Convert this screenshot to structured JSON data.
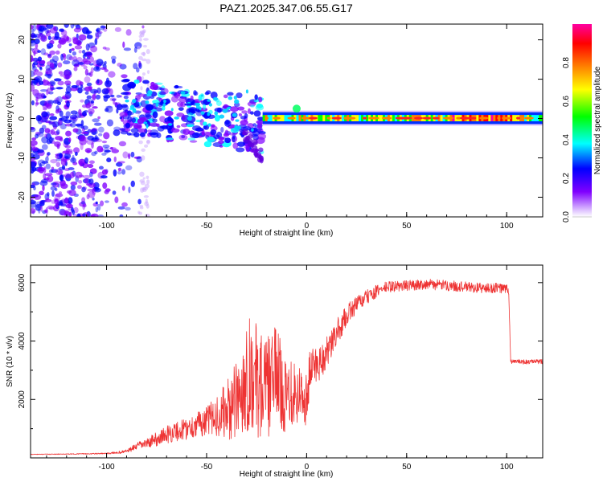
{
  "chart_data": [
    {
      "type": "heatmap",
      "title": "PAZ1.2025.347.06.55.G17",
      "xlabel": "Height of straight line (km)",
      "ylabel": "Frequency (Hz)",
      "xlim": [
        -138,
        118
      ],
      "ylim": [
        -25,
        24
      ],
      "xticks": [
        -100,
        -50,
        0,
        50,
        100
      ],
      "yticks": [
        -20,
        -10,
        0,
        10,
        20
      ],
      "xtick_labels": [
        "-100",
        "-50",
        "0",
        "50",
        "100"
      ],
      "ytick_labels": [
        "-20",
        "-10",
        "0",
        "10",
        "20"
      ],
      "colorbar": {
        "label": "Normalized spectral amplitude",
        "range": [
          0,
          1
        ],
        "ticks": [
          0,
          0.2,
          0.4,
          0.6,
          0.8
        ],
        "tick_labels": [
          "0.0",
          "0.2",
          "0.4",
          "0.6",
          "0.8"
        ],
        "colors": [
          "#ffffff",
          "#8000ff",
          "#0000ff",
          "#00ffff",
          "#00ff00",
          "#ffff00",
          "#ff8000",
          "#ff0000",
          "#ff00a0"
        ]
      }
    },
    {
      "type": "line",
      "xlabel": "Height of straight line (km)",
      "ylabel": "SNR (10 * v/v)",
      "xlim": [
        -138,
        118
      ],
      "ylim": [
        0,
        6600
      ],
      "xticks": [
        -100,
        -50,
        0,
        50,
        100
      ],
      "yticks": [
        2000,
        4000,
        6000
      ],
      "xtick_labels": [
        "-100",
        "-50",
        "0",
        "50",
        "100"
      ],
      "ytick_labels": [
        "2000",
        "4000",
        "6000"
      ],
      "series": [
        {
          "name": "SNR",
          "color": "#ee3333",
          "x": [
            -138,
            -120,
            -100,
            -92,
            -88,
            -85,
            -80,
            -75,
            -70,
            -65,
            -60,
            -55,
            -50,
            -45,
            -40,
            -35,
            -32,
            -30,
            -28,
            -25,
            -22,
            -20,
            -18,
            -15,
            -12,
            -10,
            -8,
            -5,
            -3,
            0,
            2,
            5,
            8,
            10,
            12,
            15,
            18,
            20,
            25,
            30,
            35,
            40,
            50,
            60,
            70,
            80,
            90,
            95,
            100,
            101,
            102,
            105,
            110,
            118
          ],
          "y": [
            120,
            130,
            150,
            200,
            280,
            400,
            500,
            650,
            800,
            900,
            1000,
            1150,
            1250,
            1450,
            1600,
            1900,
            2400,
            2800,
            3000,
            2600,
            2500,
            2300,
            2600,
            3000,
            2300,
            2000,
            2500,
            2200,
            2200,
            2000,
            3100,
            3200,
            3400,
            3600,
            3800,
            4300,
            4600,
            4900,
            5250,
            5500,
            5700,
            5850,
            5900,
            5950,
            5900,
            5850,
            5800,
            5820,
            5780,
            5700,
            3300,
            3300,
            3280,
            3300
          ],
          "noise": [
            10,
            12,
            20,
            50,
            80,
            120,
            150,
            250,
            300,
            350,
            380,
            420,
            500,
            700,
            1000,
            1400,
            1600,
            1900,
            2000,
            2000,
            1800,
            1800,
            1700,
            1600,
            1400,
            1200,
            1400,
            1200,
            1000,
            900,
            800,
            700,
            600,
            550,
            500,
            450,
            400,
            350,
            300,
            250,
            220,
            200,
            180,
            180,
            180,
            180,
            180,
            180,
            180,
            100,
            80,
            80,
            80,
            80
          ]
        }
      ]
    }
  ]
}
